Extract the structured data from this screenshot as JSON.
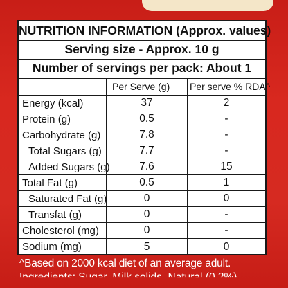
{
  "colors": {
    "pack_red": "#d8261e",
    "label_bg": "#ffffff",
    "text": "#111111",
    "cream_strip": "#f4e6c8"
  },
  "header": {
    "title": "NUTRITION INFORMATION (Approx. values)",
    "serving_size": "Serving size - Approx. 10 g",
    "servings_per_pack": "Number of servings per pack: About 1"
  },
  "columns": {
    "nutrient": "",
    "per_serve": "Per Serve (g)",
    "rda": "Per serve % RDA^"
  },
  "rows": [
    {
      "nutrient": "Energy (kcal)",
      "per_serve": "37",
      "rda": "2"
    },
    {
      "nutrient": "Protein (g)",
      "per_serve": "0.5",
      "rda": "-"
    },
    {
      "nutrient": "Carbohydrate (g)",
      "per_serve": "7.8",
      "rda": "-"
    },
    {
      "nutrient": "Total Sugars (g)",
      "per_serve": "7.7",
      "rda": "-"
    },
    {
      "nutrient": "Added Sugars (g)",
      "per_serve": "7.6",
      "rda": "15"
    },
    {
      "nutrient": "Total Fat (g)",
      "per_serve": "0.5",
      "rda": "1"
    },
    {
      "nutrient": "Saturated Fat (g)",
      "per_serve": "0",
      "rda": "0"
    },
    {
      "nutrient": "Transfat (g)",
      "per_serve": "0",
      "rda": "-"
    },
    {
      "nutrient": "Cholesterol (mg)",
      "per_serve": "0",
      "rda": "-"
    },
    {
      "nutrient": "Sodium (mg)",
      "per_serve": "5",
      "rda": "0"
    }
  ],
  "footnote": "^Based on 2000 kcal diet of an average adult.",
  "ingredients_partial": "Ingredients: Sugar, Milk solids, Natural (0.2%)"
}
